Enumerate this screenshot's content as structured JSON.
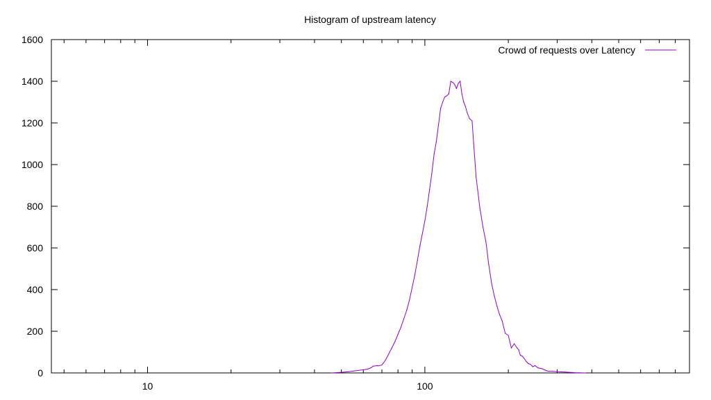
{
  "chart_data": {
    "type": "line",
    "title": "Histogram of upstream latency",
    "xlabel": "",
    "ylabel": "",
    "xscale": "log",
    "xlim": [
      4.5,
      900
    ],
    "ylim": [
      0,
      1600
    ],
    "x_major_ticks": [
      10,
      100
    ],
    "x_tick_labels": [
      "10",
      "100"
    ],
    "y_ticks": [
      0,
      200,
      400,
      600,
      800,
      1000,
      1200,
      1400,
      1600
    ],
    "y_tick_labels": [
      "0",
      "200",
      "400",
      "600",
      "800",
      "1000",
      "1200",
      "1400",
      "1600"
    ],
    "grid": false,
    "legend_position": "top-right",
    "series": [
      {
        "name": "Crowd of requests over Latency",
        "color": "#9400d3",
        "x": [
          46,
          50,
          53,
          56,
          60,
          62,
          64,
          65,
          67,
          68,
          70,
          72,
          74,
          76,
          78,
          80,
          82,
          84,
          86,
          88,
          90,
          92,
          94,
          96,
          98,
          100,
          102,
          104,
          106,
          108,
          110,
          112,
          114,
          116,
          118,
          120,
          122,
          124,
          126,
          128,
          130,
          132,
          134,
          136,
          138,
          140,
          142,
          145,
          148,
          150,
          153,
          155,
          158,
          162,
          166,
          170,
          174,
          178,
          182,
          186,
          190,
          195,
          200,
          205,
          210,
          215,
          218,
          221,
          225,
          228,
          232,
          236,
          240,
          245,
          250,
          255,
          260,
          265,
          270,
          275,
          280,
          290,
          300,
          310,
          320,
          330,
          340,
          350,
          360,
          380
        ],
        "y": [
          0,
          3,
          6,
          10,
          15,
          18,
          25,
          32,
          35,
          34,
          38,
          60,
          90,
          120,
          150,
          185,
          220,
          260,
          300,
          350,
          410,
          470,
          540,
          610,
          670,
          730,
          800,
          880,
          960,
          1050,
          1110,
          1190,
          1270,
          1300,
          1325,
          1330,
          1340,
          1400,
          1395,
          1385,
          1365,
          1390,
          1400,
          1340,
          1300,
          1280,
          1250,
          1220,
          1210,
          1100,
          940,
          880,
          790,
          700,
          630,
          520,
          430,
          370,
          320,
          280,
          250,
          190,
          180,
          120,
          140,
          120,
          110,
          85,
          80,
          70,
          55,
          45,
          42,
          30,
          35,
          25,
          22,
          20,
          15,
          10,
          8,
          8,
          6,
          5,
          4,
          3,
          2,
          1,
          1,
          0
        ]
      }
    ]
  }
}
